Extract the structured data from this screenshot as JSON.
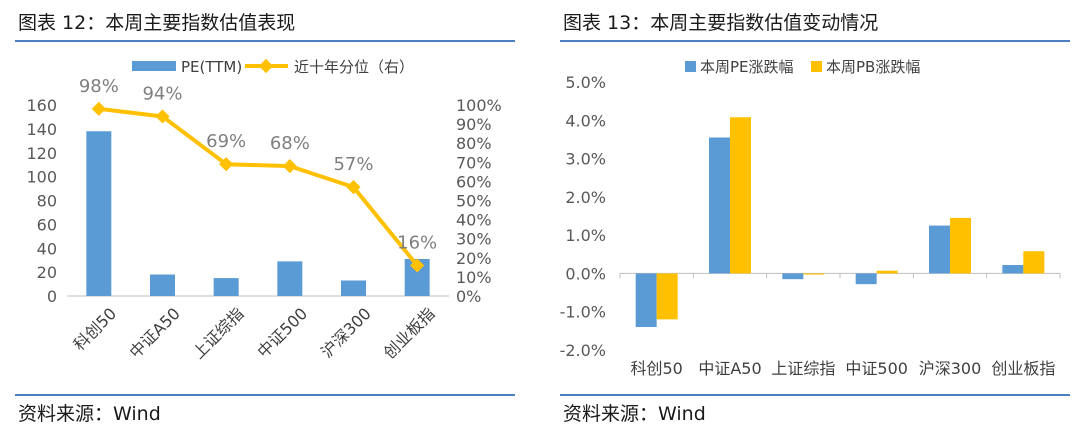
{
  "colors": {
    "accent_rule": "#4a7fc1",
    "bar_blue": "#5b9bd5",
    "gold": "#ffc000",
    "axis": "#bfbfbf"
  },
  "left_panel": {
    "title": "图表 12：本周主要指数估值表现",
    "source": "资料来源：Wind"
  },
  "right_panel": {
    "title": "图表 13：本周主要指数估值变动情况",
    "source": "资料来源：Wind"
  },
  "chart_data": [
    {
      "type": "bar",
      "categories": [
        "科创50",
        "中证A50",
        "上证综指",
        "中证500",
        "沪深300",
        "创业板指"
      ],
      "series": [
        {
          "name": "PE(TTM)",
          "type": "bar",
          "axis": "left",
          "values": [
            138,
            18,
            15,
            29,
            13,
            31
          ]
        },
        {
          "name": "近十年分位（右）",
          "type": "line",
          "axis": "right",
          "values": [
            98,
            94,
            69,
            68,
            57,
            16
          ],
          "data_labels": [
            "98%",
            "94%",
            "69%",
            "68%",
            "57%",
            "16%"
          ]
        }
      ],
      "ylim": [
        0,
        160
      ],
      "yticks": [
        "0",
        "20",
        "40",
        "60",
        "80",
        "100",
        "120",
        "140",
        "160"
      ],
      "y2lim": [
        0,
        100
      ],
      "y2ticks": [
        "0%",
        "10%",
        "20%",
        "30%",
        "40%",
        "50%",
        "60%",
        "70%",
        "80%",
        "90%",
        "100%"
      ],
      "legend_position": "top-center"
    },
    {
      "type": "bar",
      "categories": [
        "科创50",
        "中证A50",
        "上证综指",
        "中证500",
        "沪深300",
        "创业板指"
      ],
      "series": [
        {
          "name": "本周PE涨跌幅",
          "values": [
            -1.4,
            3.55,
            -0.15,
            -0.28,
            1.25,
            0.22
          ]
        },
        {
          "name": "本周PB涨跌幅",
          "values": [
            -1.2,
            4.08,
            -0.03,
            0.07,
            1.45,
            0.58
          ]
        }
      ],
      "ylim": [
        -2.0,
        5.0
      ],
      "yticks": [
        "-2.0%",
        "-1.0%",
        "0.0%",
        "1.0%",
        "2.0%",
        "3.0%",
        "4.0%",
        "5.0%"
      ],
      "legend_position": "top-center"
    }
  ]
}
